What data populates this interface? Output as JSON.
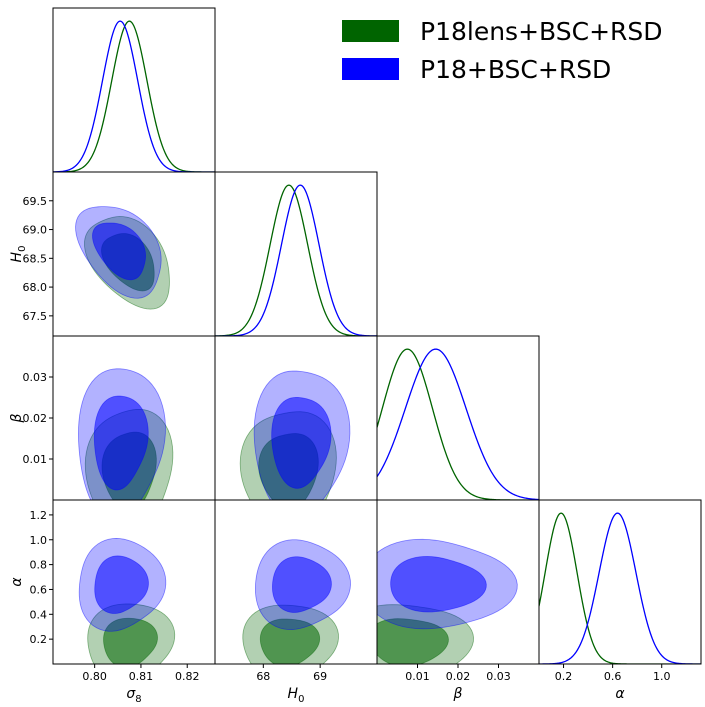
{
  "chart_data": {
    "type": "triangle",
    "parameters": [
      {
        "key": "s8",
        "label": "σ",
        "subscript": "8",
        "range": [
          0.791,
          0.826
        ],
        "ticks": [
          0.8,
          0.81,
          0.82
        ],
        "tick_labels": [
          "0.80",
          "0.81",
          "0.82"
        ]
      },
      {
        "key": "H0",
        "label": "H",
        "subscript": "0",
        "range": [
          67.15,
          70.0
        ],
        "ticks": [
          67.5,
          68.0,
          68.5,
          69.0,
          69.5
        ],
        "tick_labels": [
          "67.5",
          "68.0",
          "68.5",
          "69.0",
          "69.5"
        ],
        "x_ticks": [
          68,
          69
        ],
        "x_tick_labels": [
          "68",
          "69"
        ]
      },
      {
        "key": "beta",
        "label": "β",
        "subscript": "",
        "range": [
          0.0,
          0.04
        ],
        "ticks": [
          0.01,
          0.02,
          0.03
        ],
        "tick_labels": [
          "0.01",
          "0.02",
          "0.03"
        ]
      },
      {
        "key": "alpha",
        "label": "α",
        "subscript": "",
        "range": [
          0.0,
          1.32
        ],
        "ticks": [
          0.2,
          0.4,
          0.6,
          0.8,
          1.0,
          1.2
        ],
        "tick_labels": [
          "0.2",
          "0.4",
          "0.6",
          "0.8",
          "1.0",
          "1.2"
        ],
        "x_ticks": [
          0.2,
          0.6,
          1.0
        ],
        "x_tick_labels": [
          "0.2",
          "0.6",
          "1.0"
        ]
      }
    ],
    "series": [
      {
        "name": "P18lens+BSC+RSD",
        "color": "#006400",
        "means": {
          "s8": 0.8075,
          "H0": 68.45,
          "beta": 0.0075,
          "alpha": 0.18
        },
        "sigmas": {
          "s8": 0.0038,
          "H0": 0.33,
          "beta": 0.0062,
          "alpha": 0.13
        }
      },
      {
        "name": "P18+BSC+RSD",
        "color": "#0000ff",
        "means": {
          "s8": 0.8055,
          "H0": 68.65,
          "beta": 0.0145,
          "alpha": 0.64
        },
        "sigmas": {
          "s8": 0.0038,
          "H0": 0.33,
          "beta": 0.0075,
          "alpha": 0.15
        }
      }
    ],
    "legend": {
      "placement": "top-right",
      "entries": [
        "P18lens+BSC+RSD",
        "P18+BSC+RSD"
      ]
    }
  }
}
